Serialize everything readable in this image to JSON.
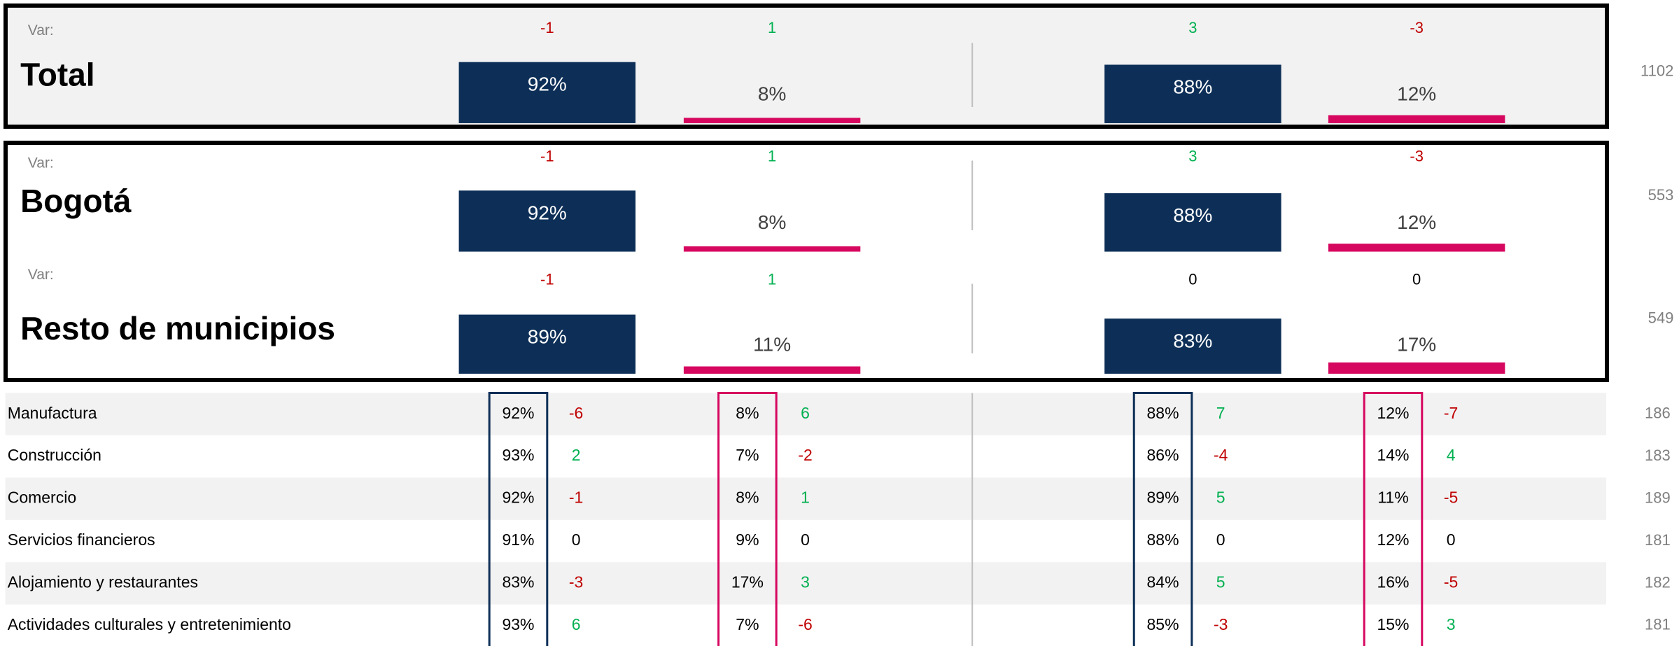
{
  "panels": [
    {
      "label": "Total",
      "var_label": "Var:",
      "values": [
        92,
        8,
        88,
        12
      ],
      "value_labels": [
        "92%",
        "8%",
        "88%",
        "12%"
      ],
      "vars": [
        -1,
        1,
        3,
        -3
      ],
      "n": 1102
    },
    {
      "label": "Bogotá",
      "var_label": "Var:",
      "values": [
        92,
        8,
        88,
        12
      ],
      "value_labels": [
        "92%",
        "8%",
        "88%",
        "12%"
      ],
      "vars": [
        -1,
        1,
        3,
        -3
      ],
      "n": 553
    },
    {
      "label": "Resto de municipios",
      "var_label": "Var:",
      "values": [
        89,
        11,
        83,
        17
      ],
      "value_labels": [
        "89%",
        "11%",
        "83%",
        "17%"
      ],
      "vars": [
        -1,
        1,
        0,
        0
      ],
      "n": 549
    }
  ],
  "table": {
    "rows": [
      {
        "name": "Manufactura",
        "cells": [
          "92%",
          "8%",
          "88%",
          "12%"
        ],
        "vars": [
          -6,
          6,
          7,
          -7
        ],
        "n": 186
      },
      {
        "name": "Construcción",
        "cells": [
          "93%",
          "7%",
          "86%",
          "14%"
        ],
        "vars": [
          2,
          -2,
          -4,
          4
        ],
        "n": 183
      },
      {
        "name": "Comercio",
        "cells": [
          "92%",
          "8%",
          "89%",
          "11%"
        ],
        "vars": [
          -1,
          1,
          5,
          -5
        ],
        "n": 189
      },
      {
        "name": "Servicios financieros",
        "cells": [
          "91%",
          "9%",
          "88%",
          "12%"
        ],
        "vars": [
          0,
          0,
          0,
          0
        ],
        "n": 181
      },
      {
        "name": "Alojamiento y restaurantes",
        "cells": [
          "83%",
          "17%",
          "84%",
          "16%"
        ],
        "vars": [
          -3,
          3,
          5,
          -5
        ],
        "n": 182
      },
      {
        "name": "Actividades culturales y entretenimiento",
        "cells": [
          "93%",
          "7%",
          "85%",
          "15%"
        ],
        "vars": [
          6,
          -6,
          -3,
          3
        ],
        "n": 181
      }
    ]
  }
}
